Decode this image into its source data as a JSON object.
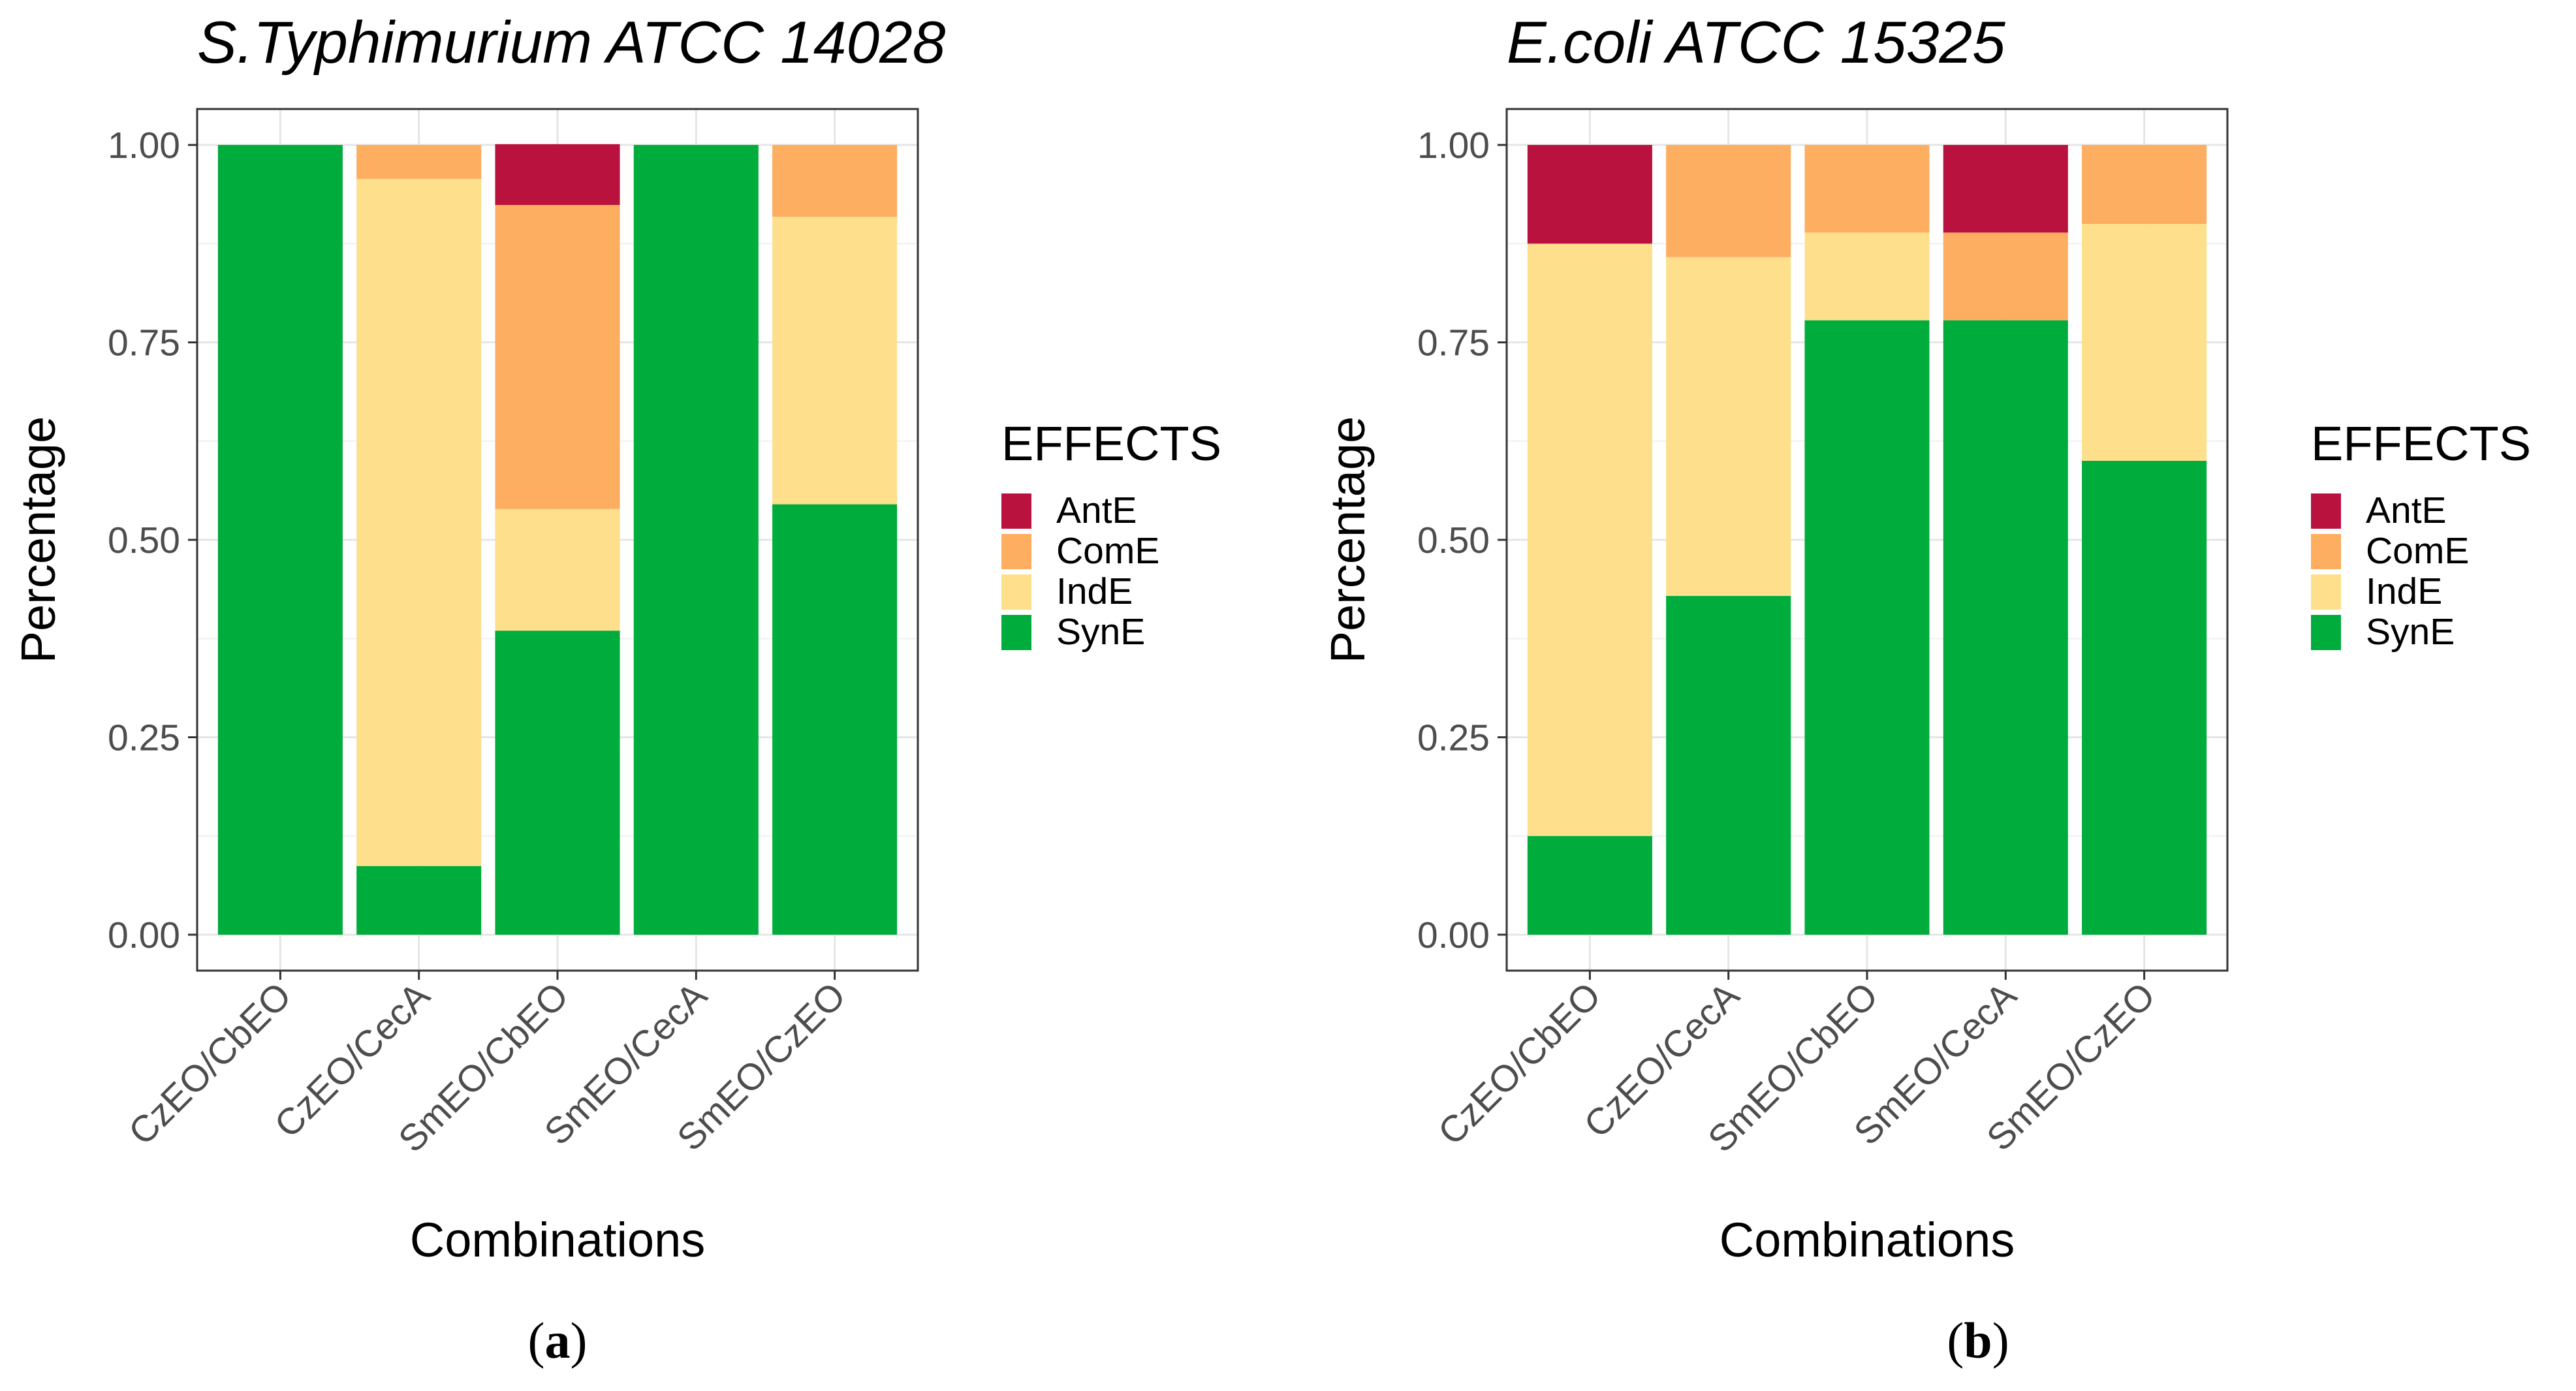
{
  "chart_data": [
    {
      "type": "bar",
      "stacked": true,
      "title": "S.Typhimurium ATCC 14028",
      "xlabel": "Combinations",
      "ylabel": "Percentage",
      "ylim": [
        0,
        1
      ],
      "yticks": [
        "0.00",
        "0.25",
        "0.50",
        "0.75",
        "1.00"
      ],
      "categories": [
        "CzEO/CbEO",
        "CzEO/CecA",
        "SmEO/CbEO",
        "SmEO/CecA",
        "SmEO/CzEO"
      ],
      "series": [
        {
          "name": "SynE",
          "color": "#00AD3C",
          "values": [
            1.0,
            0.087,
            0.385,
            1.0,
            0.545
          ]
        },
        {
          "name": "IndE",
          "color": "#FEDF8B",
          "values": [
            0.0,
            0.87,
            0.154,
            0.0,
            0.364
          ]
        },
        {
          "name": "ComE",
          "color": "#FDAE61",
          "values": [
            0.0,
            0.043,
            0.385,
            0.0,
            0.091
          ]
        },
        {
          "name": "AntE",
          "color": "#BA123F",
          "values": [
            0.0,
            0.0,
            0.077,
            0.0,
            0.0
          ]
        }
      ],
      "legend_title": "EFFECTS",
      "legend_order": [
        "AntE",
        "ComE",
        "IndE",
        "SynE"
      ],
      "legend_position": "right",
      "caption_open": "(",
      "caption_letter": "a",
      "caption_close": ")"
    },
    {
      "type": "bar",
      "stacked": true,
      "title": "E.coli ATCC 15325",
      "xlabel": "Combinations",
      "ylabel": "Percentage",
      "ylim": [
        0,
        1
      ],
      "yticks": [
        "0.00",
        "0.25",
        "0.50",
        "0.75",
        "1.00"
      ],
      "categories": [
        "CzEO/CbEO",
        "CzEO/CecA",
        "SmEO/CbEO",
        "SmEO/CecA",
        "SmEO/CzEO"
      ],
      "series": [
        {
          "name": "SynE",
          "color": "#00AD3C",
          "values": [
            0.125,
            0.429,
            0.778,
            0.778,
            0.6
          ]
        },
        {
          "name": "IndE",
          "color": "#FEDF8B",
          "values": [
            0.75,
            0.429,
            0.111,
            0.0,
            0.3
          ]
        },
        {
          "name": "ComE",
          "color": "#FDAE61",
          "values": [
            0.0,
            0.142,
            0.111,
            0.111,
            0.1
          ]
        },
        {
          "name": "AntE",
          "color": "#BA123F",
          "values": [
            0.125,
            0.0,
            0.0,
            0.111,
            0.0
          ]
        }
      ],
      "legend_title": "EFFECTS",
      "legend_order": [
        "AntE",
        "ComE",
        "IndE",
        "SynE"
      ],
      "legend_position": "right",
      "caption_open": "(",
      "caption_letter": "b",
      "caption_close": ")"
    }
  ]
}
